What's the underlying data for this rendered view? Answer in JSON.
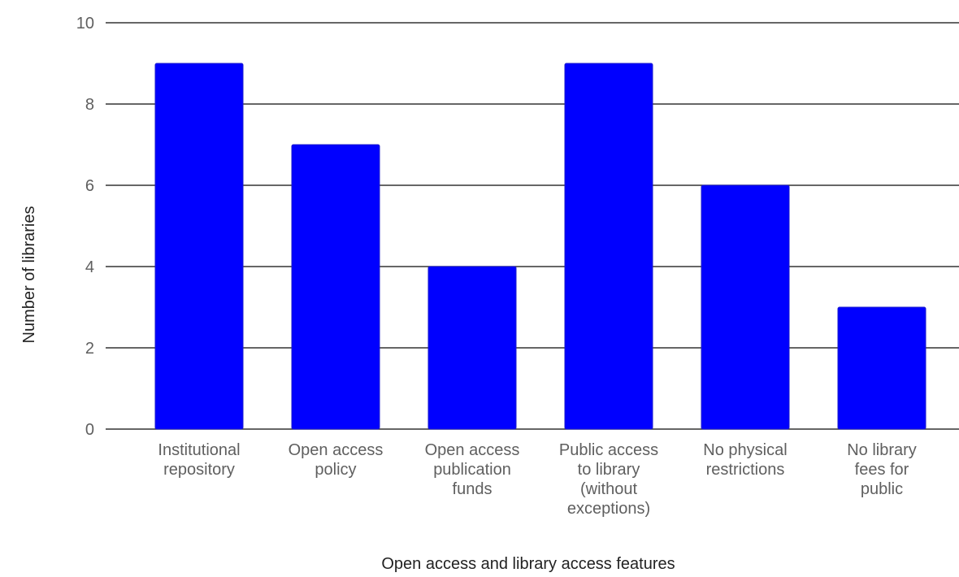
{
  "chart_data": {
    "type": "bar",
    "categories": [
      "Institutional repository",
      "Open access policy",
      "Open access publication funds",
      "Public access to library (without exceptions)",
      "No physical restrictions",
      "No library fees for public"
    ],
    "category_label_lines": [
      [
        "Institutional",
        "repository"
      ],
      [
        "Open access",
        "policy"
      ],
      [
        "Open access",
        "publication",
        "funds"
      ],
      [
        "Public access",
        "to library",
        "(without",
        "exceptions)"
      ],
      [
        "No physical",
        "restrictions"
      ],
      [
        "No library",
        "fees for",
        "public"
      ]
    ],
    "values": [
      9,
      7,
      4,
      9,
      6,
      3
    ],
    "xlabel": "Open access and library access features",
    "ylabel": "Number of libraries",
    "ylim": [
      0,
      10
    ],
    "yticks": [
      0,
      2,
      4,
      6,
      8,
      10
    ],
    "grid": true,
    "legend": "none",
    "colors": {
      "bar": "#0000ff",
      "bar_edge": "#1a1acc",
      "grid": "#333333"
    }
  }
}
